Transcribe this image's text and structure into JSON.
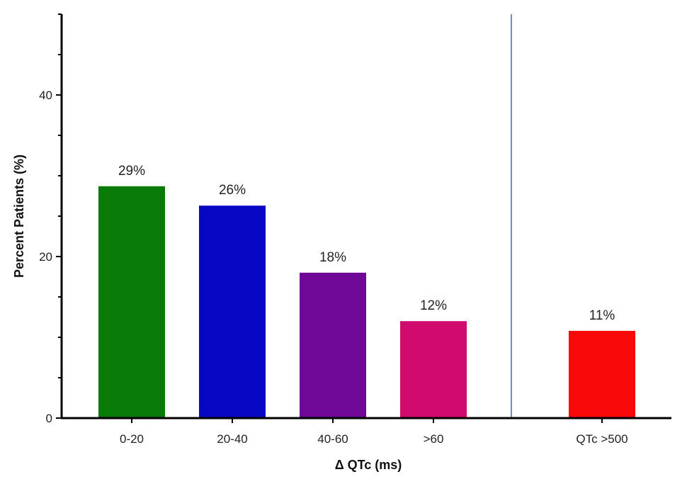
{
  "chart_data": {
    "type": "bar",
    "title": "",
    "xlabel": "Δ QTc (ms)",
    "ylabel": "Percent Patients (%)",
    "ylim": [
      0,
      50
    ],
    "y_ticks": [
      "0",
      "20",
      "40"
    ],
    "grid": false,
    "categories": [
      "0-20",
      "20-40",
      "40-60",
      ">60",
      "QTc >500"
    ],
    "values": [
      28.7,
      26.3,
      18.0,
      12.0,
      10.8
    ],
    "data_labels": [
      "29%",
      "26%",
      "18%",
      "12%",
      "11%"
    ],
    "colors": [
      "#087a08",
      "#0808c4",
      "#6f0896",
      "#d10a6e",
      "#f80808"
    ],
    "separator_color": "#3a6fb5"
  }
}
